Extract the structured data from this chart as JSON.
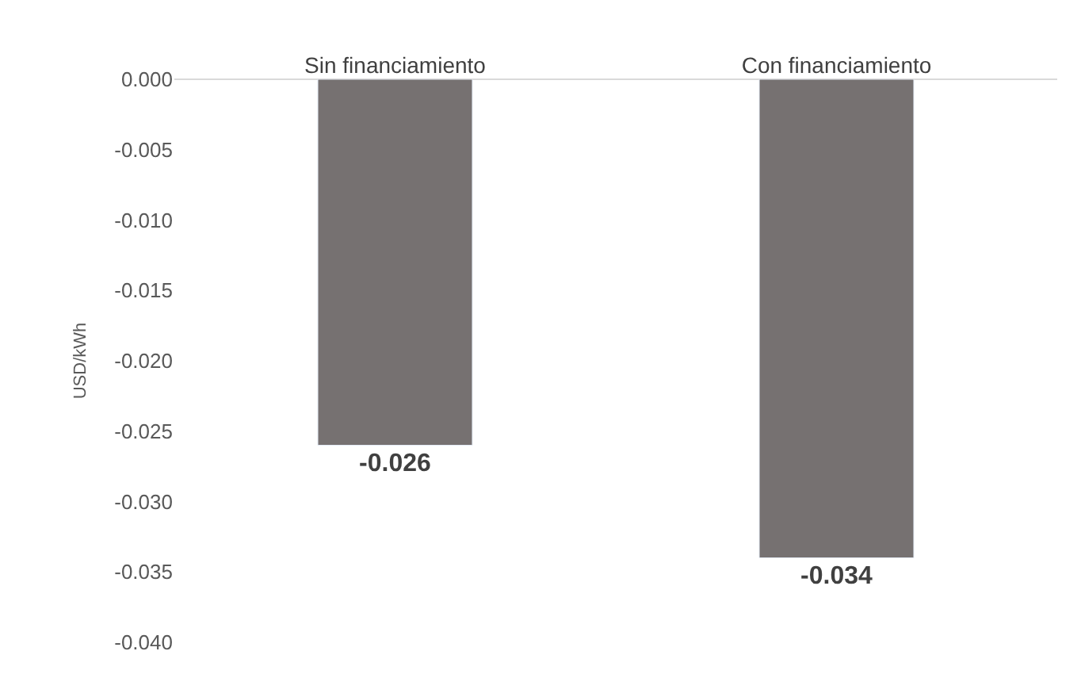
{
  "chart_data": {
    "type": "bar",
    "categories": [
      "Sin financiamiento",
      "Con financiamiento"
    ],
    "values": [
      -0.026,
      -0.034
    ],
    "color": "#767171",
    "ylabel": "USD/kWh",
    "ylim": [
      -0.04,
      0.0
    ],
    "yticks": [
      {
        "value": 0,
        "label": "0.000"
      },
      {
        "value": -0.005,
        "label": "-0.005"
      },
      {
        "value": -0.01,
        "label": "-0.010"
      },
      {
        "value": -0.015,
        "label": "-0.015"
      },
      {
        "value": -0.02,
        "label": "-0.020"
      },
      {
        "value": -0.025,
        "label": "-0.025"
      },
      {
        "value": -0.03,
        "label": "-0.030"
      },
      {
        "value": -0.035,
        "label": "-0.035"
      },
      {
        "value": -0.04,
        "label": "-0.040"
      }
    ],
    "data_labels": true
  }
}
